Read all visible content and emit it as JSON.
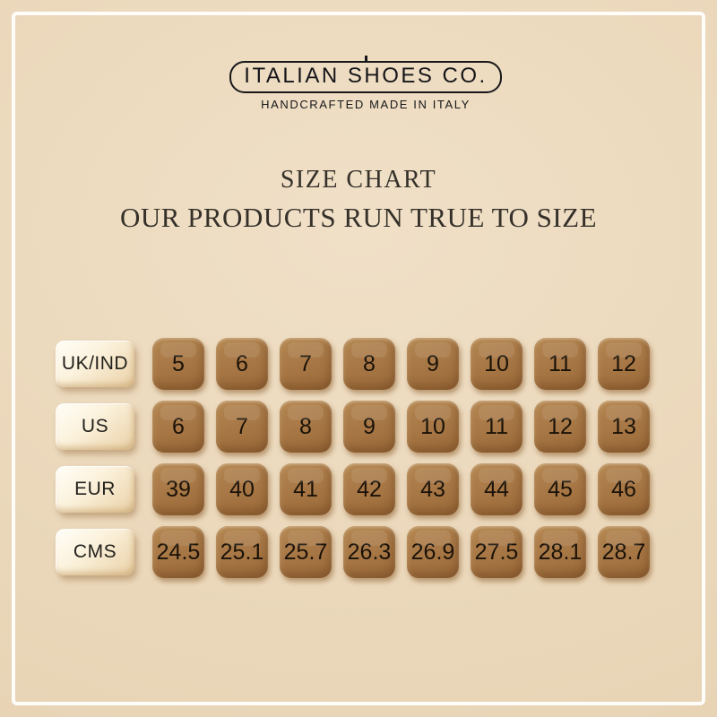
{
  "page": {
    "background_color": "#ecdabd",
    "frame_color": "#fefdfa"
  },
  "logo": {
    "brand": "ITALIAN SHOES CO.",
    "tagline": "HANDCRAFTED MADE IN ITALY"
  },
  "heading": {
    "title": "SIZE CHART",
    "subtitle": "OUR PRODUCTS RUN TRUE TO SIZE"
  },
  "chart_data": {
    "type": "table",
    "row_labels": [
      "UK/IND",
      "US",
      "EUR",
      "CMS"
    ],
    "rows": [
      {
        "label": "UK/IND",
        "values": [
          "5",
          "6",
          "7",
          "8",
          "9",
          "10",
          "11",
          "12"
        ]
      },
      {
        "label": "US",
        "values": [
          "6",
          "7",
          "8",
          "9",
          "10",
          "11",
          "12",
          "13"
        ]
      },
      {
        "label": "EUR",
        "values": [
          "39",
          "40",
          "41",
          "42",
          "43",
          "44",
          "45",
          "46"
        ]
      },
      {
        "label": "CMS",
        "values": [
          "24.5",
          "25.1",
          "25.7",
          "26.3",
          "26.9",
          "27.5",
          "28.1",
          "28.7"
        ]
      }
    ],
    "title": "SIZE CHART",
    "note": "OUR PRODUCTS RUN TRUE TO SIZE"
  },
  "colors": {
    "cell_brown": "#a67544",
    "cell_brown_dark": "#996838",
    "chip_cream": "#f8eed7",
    "text_dark": "#1a1208"
  }
}
